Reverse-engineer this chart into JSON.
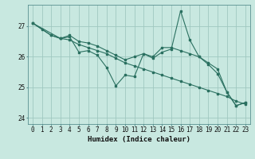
{
  "background_color": "#c8e8e0",
  "grid_color_major": "#a0c8c0",
  "grid_color_minor": "#b8d8d0",
  "line_color": "#2a7060",
  "series": [
    {
      "x": [
        0,
        1,
        2,
        3,
        4,
        5,
        6,
        7,
        8,
        9,
        10,
        11,
        12,
        13,
        14,
        15,
        16,
        17,
        18,
        19,
        20,
        21,
        22,
        23
      ],
      "y": [
        27.1,
        26.9,
        26.7,
        26.6,
        26.55,
        26.4,
        26.3,
        26.2,
        26.1,
        25.95,
        25.8,
        25.7,
        25.6,
        25.5,
        25.4,
        25.3,
        25.2,
        25.1,
        25.0,
        24.9,
        24.8,
        24.7,
        24.55,
        24.45
      ]
    },
    {
      "x": [
        0,
        2,
        3,
        4,
        5,
        6,
        7,
        8,
        9,
        10,
        11,
        12,
        13,
        14,
        15,
        16,
        17,
        18,
        19,
        20,
        21,
        22,
        23
      ],
      "y": [
        27.1,
        26.7,
        26.6,
        26.7,
        26.5,
        26.45,
        26.35,
        26.2,
        26.05,
        25.9,
        26.0,
        26.1,
        26.0,
        26.3,
        26.3,
        26.2,
        26.1,
        26.0,
        25.8,
        25.6,
        24.85,
        24.4,
        24.5
      ]
    },
    {
      "x": [
        0,
        3,
        4,
        5,
        6,
        7,
        8,
        9,
        10,
        11,
        12,
        13,
        14,
        15,
        16,
        17,
        18,
        19,
        20,
        21,
        22,
        23
      ],
      "y": [
        27.1,
        26.6,
        26.65,
        26.15,
        26.2,
        26.05,
        25.65,
        25.05,
        25.4,
        25.35,
        26.1,
        25.95,
        26.15,
        26.25,
        27.5,
        26.55,
        26.0,
        25.75,
        25.45,
        24.85,
        24.4,
        24.5
      ]
    }
  ],
  "xlabel": "Humidex (Indice chaleur)",
  "xlim": [
    -0.5,
    23.5
  ],
  "ylim": [
    23.8,
    27.7
  ],
  "yticks": [
    24,
    25,
    26,
    27
  ],
  "xticks": [
    0,
    1,
    2,
    3,
    4,
    5,
    6,
    7,
    8,
    9,
    10,
    11,
    12,
    13,
    14,
    15,
    16,
    17,
    18,
    19,
    20,
    21,
    22,
    23
  ],
  "tick_fontsize": 5.5,
  "xlabel_fontsize": 6.5
}
